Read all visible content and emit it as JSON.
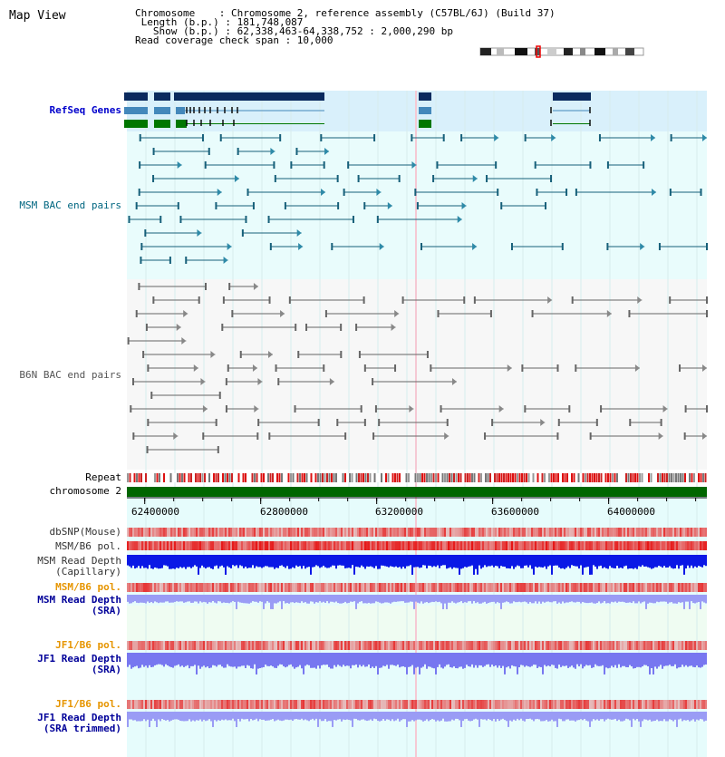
{
  "view_title": "Map View",
  "info": {
    "chromosome": "Chromosome    : Chromosome 2, reference assembly (C57BL/6J) (Build 37)",
    "length": " Length (b.p.) : 181,748,087",
    "show": "   Show (b.p.) : 62,338,463-64,338,752 : 2,000,290 bp",
    "coverage": "Read coverage check span : 10,000"
  },
  "tracks": {
    "refseq": "RefSeq Genes",
    "msm_bac": "MSM BAC end pairs",
    "b6n_bac": "B6N BAC end pairs",
    "repeat": "Repeat",
    "chromosome": "chromosome 2",
    "dbsnp": "dbSNP(Mouse)",
    "msm_b6_pol": "MSM/B6 pol.",
    "msm_depth_cap_1": "MSM Read Depth",
    "msm_depth_cap_2": "(Capillary)",
    "msm_b6_pol_sra": "MSM/B6 pol.",
    "msm_depth_sra_1": "MSM Read Depth",
    "msm_depth_sra_2": "(SRA)",
    "jf1_b6_pol": "JF1/B6 pol.",
    "jf1_depth_sra_1": "JF1 Read Depth",
    "jf1_depth_sra_2": "(SRA)",
    "jf1_b6_pol_trim": "JF1/B6 pol.",
    "jf1_depth_trim_1": "JF1 Read Depth",
    "jf1_depth_trim_2": "(SRA trimmed)"
  },
  "ruler": {
    "ticks": [
      "62400000",
      "62800000",
      "63200000",
      "63600000",
      "64000000"
    ],
    "tick_values": [
      62400000,
      62800000,
      63200000,
      63600000,
      64000000
    ],
    "start": 62338463,
    "end": 64338752
  },
  "colors": {
    "refseq_label": "#0000cc",
    "msm_label": "#006680",
    "b6n_label": "#555555",
    "pol_label": "#e69500",
    "depth_label": "#000099",
    "chromosome_bar": "#006600",
    "refseq_dark": "#0a2a5e",
    "refseq_mid": "#4488bb",
    "refseq_green": "#007700"
  }
}
